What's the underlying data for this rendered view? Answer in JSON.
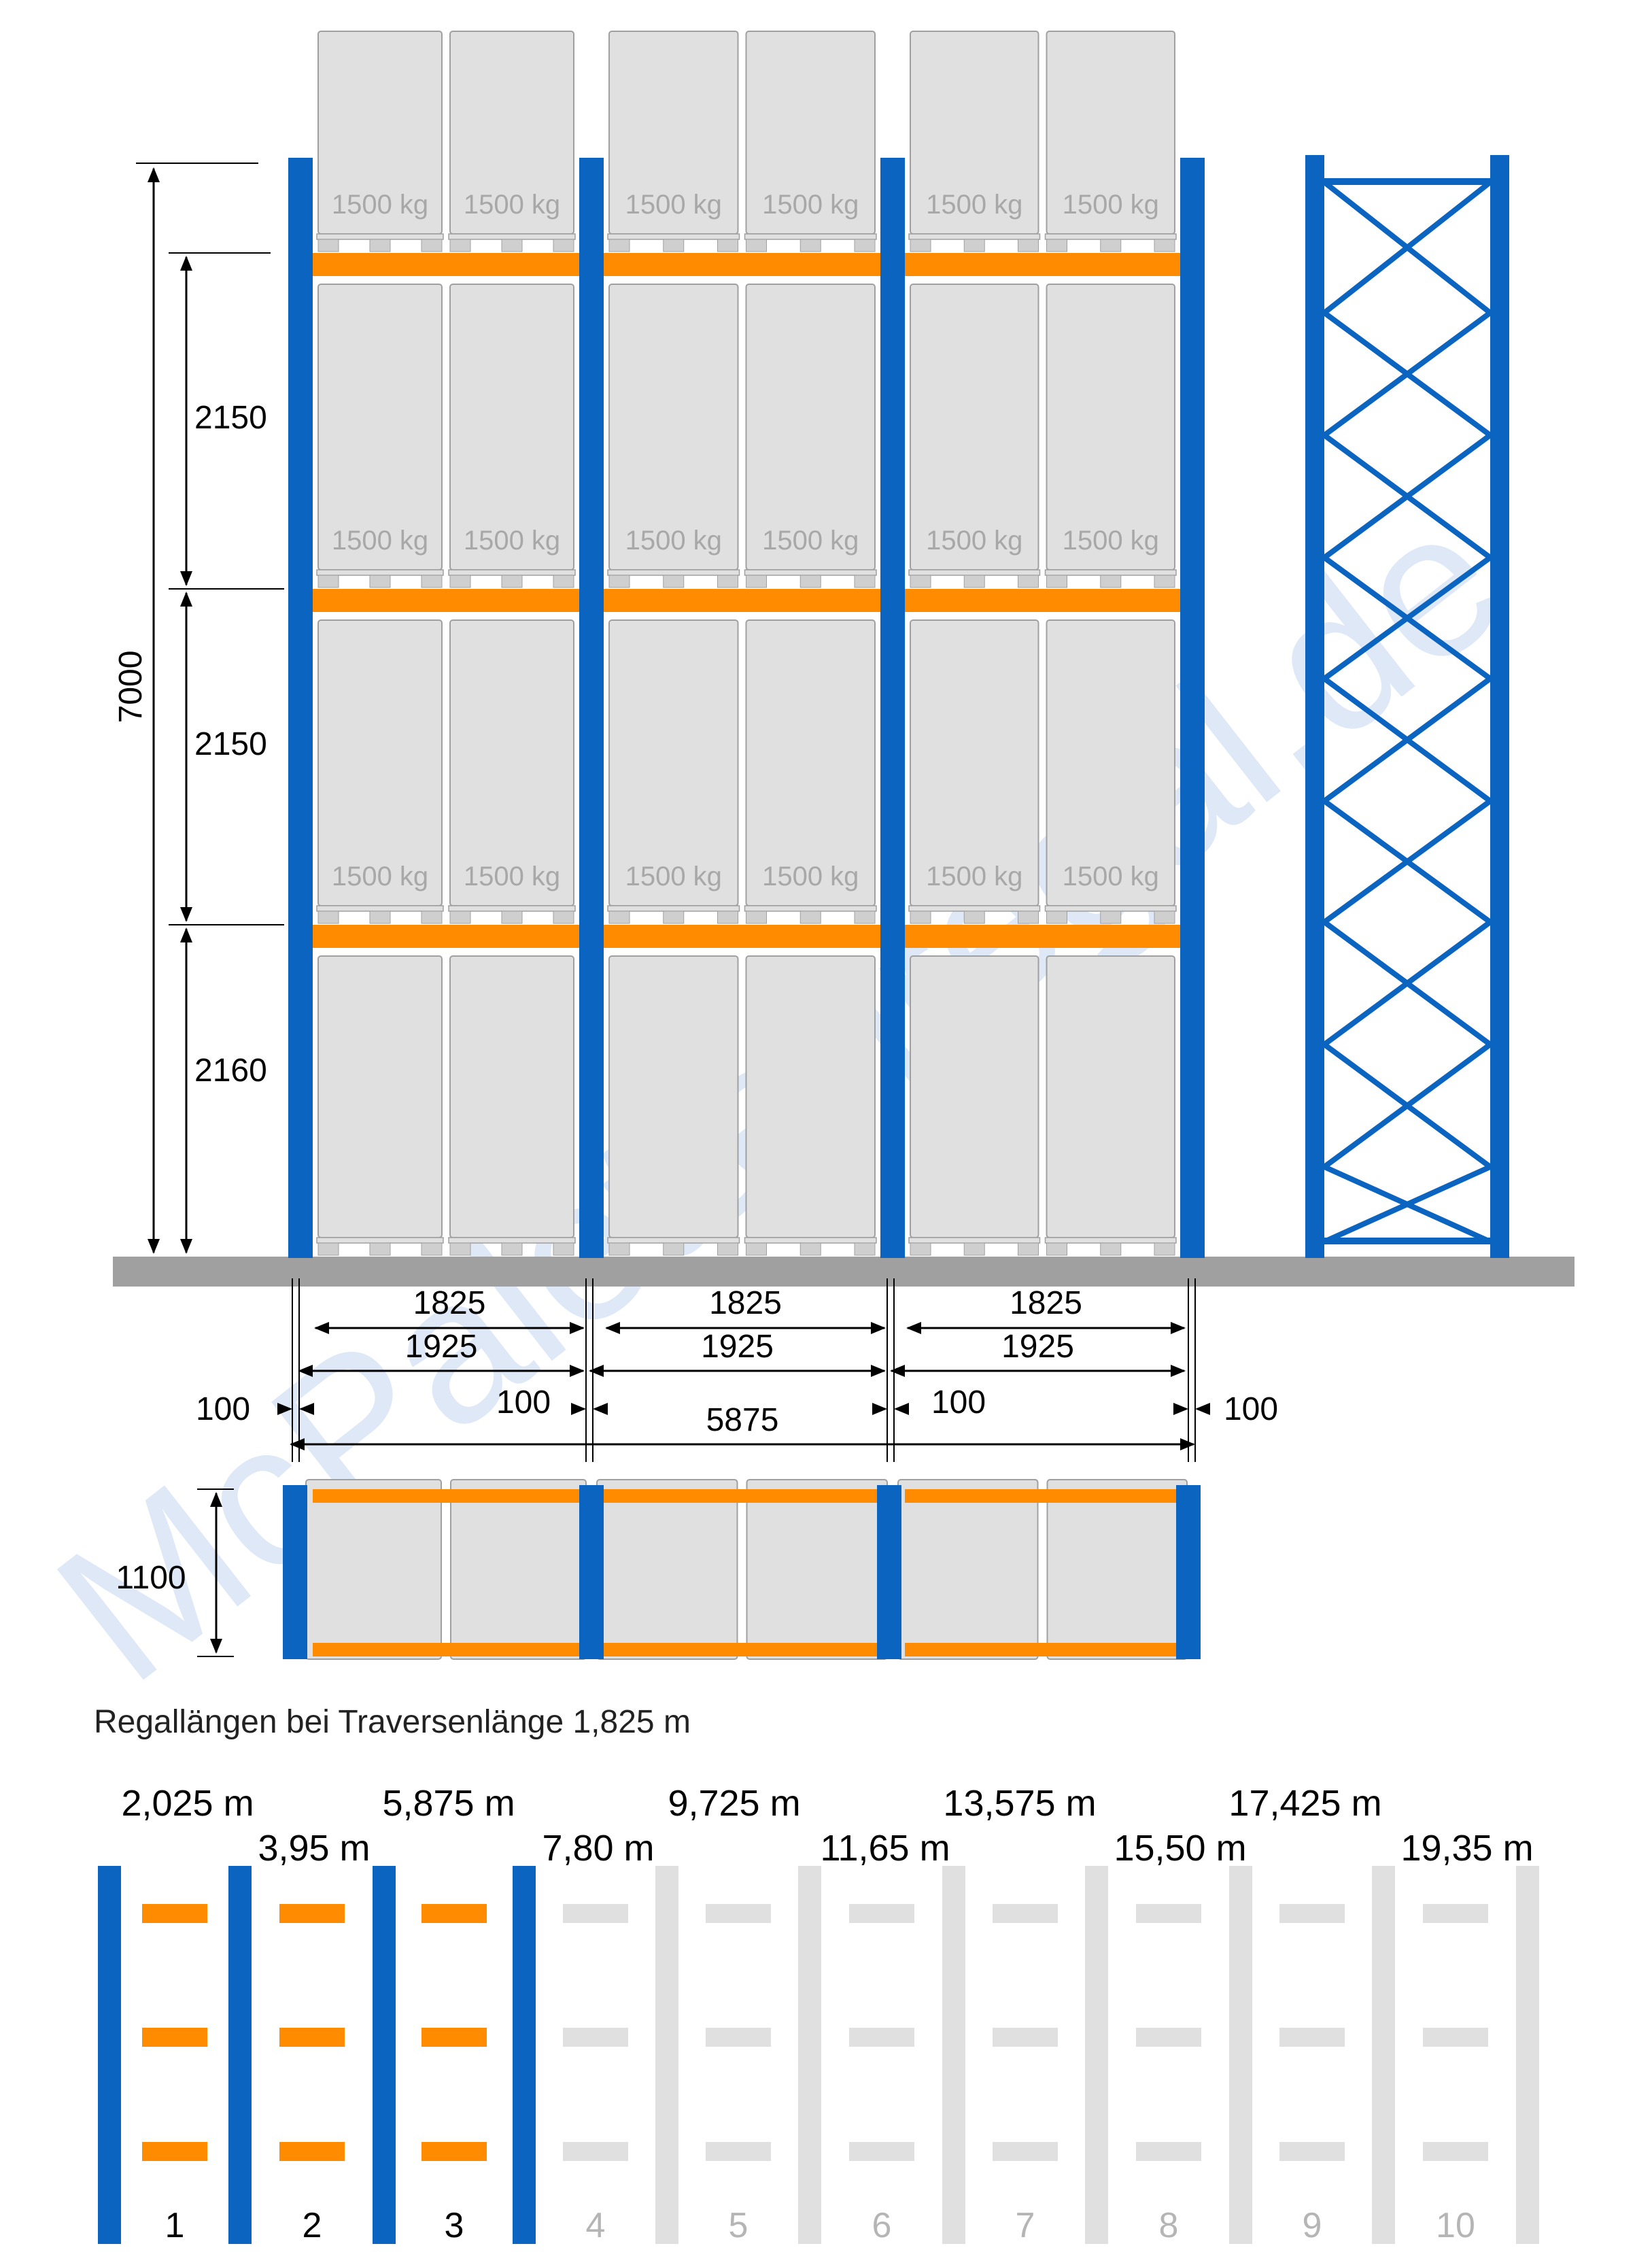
{
  "colors": {
    "upright": "#0a64c0",
    "beam": "#ff8c00",
    "pallet_fill": "#e0e0e0",
    "pallet_stroke": "#a0a0a0",
    "pallet_label": "#a8a8a8",
    "floor": "#a0a0a0",
    "ghost": "#e0e0e0",
    "dim_text": "#000000",
    "watermark": "#dbe6f6"
  },
  "icons": {
    "upright": "vertical-bar",
    "beam": "horizontal-bar",
    "pallet": "rounded-box",
    "arrow": "dimension-arrow"
  },
  "front_view": {
    "pallet_weight": "1500 kg",
    "level_heights": [
      "2150",
      "2150",
      "2160"
    ],
    "total_height": "7000"
  },
  "width_dims": {
    "beam_length": "1825",
    "bay_pitch": "1925",
    "upright_width": "100",
    "total_length": "5875"
  },
  "top_view": {
    "depth": "1100"
  },
  "lengths_section": {
    "title": "Regallängen bei Traversenlänge 1,825 m",
    "bays_active": 3,
    "lengths_top": [
      "2,025 m",
      "5,875 m",
      "9,725 m",
      "13,575 m",
      "17,425 m"
    ],
    "lengths_bottom": [
      "3,95 m",
      "7,80 m",
      "11,65 m",
      "15,50 m",
      "19,35 m"
    ],
    "bay_numbers": [
      "1",
      "2",
      "3",
      "4",
      "5",
      "6",
      "7",
      "8",
      "9",
      "10"
    ]
  },
  "watermark": "McPalettenregal.de"
}
